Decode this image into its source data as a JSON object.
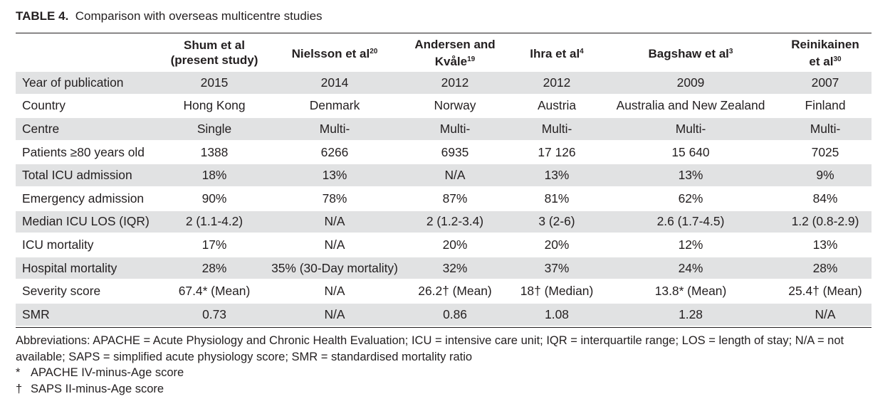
{
  "caption": {
    "label": "TABLE 4.",
    "text": "Comparison with overseas multicentre studies"
  },
  "columns": [
    {
      "line1": "Shum et al",
      "line2": "(present study)",
      "sup": ""
    },
    {
      "line1": "Nielsson et al",
      "line2": "",
      "sup": "20"
    },
    {
      "line1": "Andersen and",
      "line2": "Kvåle",
      "sup": "19"
    },
    {
      "line1": "Ihra et al",
      "line2": "",
      "sup": "4"
    },
    {
      "line1": "Bagshaw et al",
      "line2": "",
      "sup": "3"
    },
    {
      "line1": "Reinikainen",
      "line2": "et al",
      "sup": "30"
    }
  ],
  "rows": [
    {
      "label": "Year of publication",
      "values": [
        "2015",
        "2014",
        "2012",
        "2012",
        "2009",
        "2007"
      ]
    },
    {
      "label": "Country",
      "values": [
        "Hong Kong",
        "Denmark",
        "Norway",
        "Austria",
        "Australia and New Zealand",
        "Finland"
      ]
    },
    {
      "label": "Centre",
      "values": [
        "Single",
        "Multi-",
        "Multi-",
        "Multi-",
        "Multi-",
        "Multi-"
      ]
    },
    {
      "label": "Patients ≥80 years old",
      "values": [
        "1388",
        "6266",
        "6935",
        "17 126",
        "15 640",
        "7025"
      ]
    },
    {
      "label": "Total ICU admission",
      "values": [
        "18%",
        "13%",
        "N/A",
        "13%",
        "13%",
        "9%"
      ]
    },
    {
      "label": "Emergency admission",
      "values": [
        "90%",
        "78%",
        "87%",
        "81%",
        "62%",
        "84%"
      ]
    },
    {
      "label": "Median ICU LOS (IQR)",
      "values": [
        "2 (1.1-4.2)",
        "N/A",
        "2 (1.2-3.4)",
        "3 (2-6)",
        "2.6 (1.7-4.5)",
        "1.2 (0.8-2.9)"
      ]
    },
    {
      "label": "ICU mortality",
      "values": [
        "17%",
        "N/A",
        "20%",
        "20%",
        "12%",
        "13%"
      ]
    },
    {
      "label": "Hospital mortality",
      "values": [
        "28%",
        "35% (30-Day mortality)",
        "32%",
        "37%",
        "24%",
        "28%"
      ]
    },
    {
      "label": "Severity score",
      "values": [
        "67.4* (Mean)",
        "N/A",
        "26.2† (Mean)",
        "18† (Median)",
        "13.8* (Mean)",
        "25.4† (Mean)"
      ]
    },
    {
      "label": "SMR",
      "values": [
        "0.73",
        "N/A",
        "0.86",
        "1.08",
        "1.28",
        "N/A"
      ]
    }
  ],
  "footnotes": {
    "abbreviations": "Abbreviations: APACHE = Acute Physiology and Chronic Health Evaluation; ICU = intensive care unit; IQR = interquartile range; LOS = length of stay; N/A = not available; SAPS = simplified acute physiology score; SMR = standardised mortality ratio",
    "notes": [
      {
        "symbol": "*",
        "text": "APACHE IV-minus-Age score"
      },
      {
        "symbol": "†",
        "text": "SAPS II-minus-Age score"
      }
    ]
  }
}
